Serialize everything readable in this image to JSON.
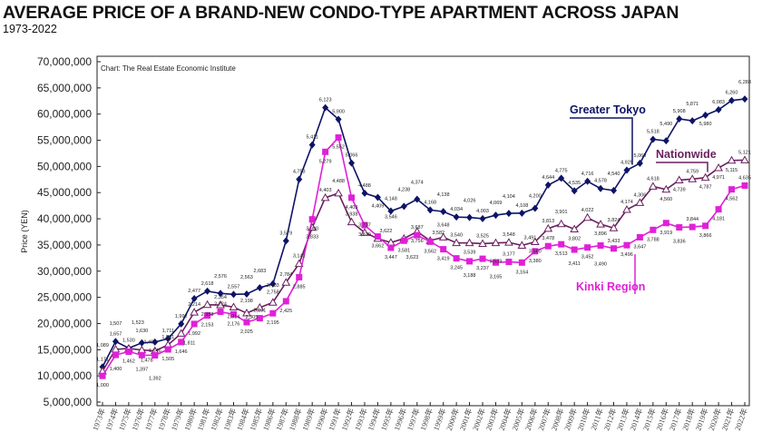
{
  "title": "AVERAGE PRICE OF A BRAND-NEW CONDO-TYPE APARTMENT ACROSS JAPAN",
  "subtitle": "1973-2022",
  "chart_data": {
    "type": "line",
    "source": "Chart: The Real Estate Economic Institute",
    "ylabel": "Price (YEN)",
    "xlabel": "",
    "ylim": [
      5000000,
      70000000
    ],
    "yticks": [
      5000000,
      10000000,
      15000000,
      20000000,
      25000000,
      30000000,
      35000000,
      40000000,
      45000000,
      50000000,
      55000000,
      60000000,
      65000000,
      70000000
    ],
    "x": [
      1973,
      1974,
      1975,
      1976,
      1977,
      1978,
      1979,
      1980,
      1981,
      1982,
      1983,
      1984,
      1985,
      1986,
      1987,
      1988,
      1989,
      1990,
      1991,
      1992,
      1993,
      1994,
      1995,
      1996,
      1997,
      1998,
      1999,
      2000,
      2001,
      2002,
      2003,
      2004,
      2005,
      2006,
      2007,
      2008,
      2009,
      2010,
      2011,
      2012,
      2013,
      2014,
      2015,
      2016,
      2017,
      2018,
      2019,
      2020,
      2021,
      2022
    ],
    "x_tick_suffix": "年",
    "value_label_unit": "10,000 yen",
    "grid": false,
    "legend": "callout labels",
    "series": [
      {
        "name": "Greater Tokyo",
        "color": "#0d1466",
        "marker": "diamond",
        "values": [
          1171,
          1657,
          1530,
          1630,
          1646,
          1711,
          1992,
          2477,
          2618,
          2576,
          2557,
          2563,
          2683,
          2758,
          3579,
          4753,
          5411,
          6123,
          5900,
          5066,
          4488,
          4409,
          4148,
          4238,
          4374,
          4168,
          4138,
          4034,
          4026,
          4003,
          4069,
          4104,
          4108,
          4200,
          4644,
          4775,
          4535,
          4716,
          4578,
          4540,
          4929,
          5060,
          5518,
          5490,
          5908,
          5871,
          5980,
          6083,
          6260,
          6288
        ]
      },
      {
        "name": "Nationwide",
        "color": "#6a1f5e",
        "marker": "triangle-open",
        "values": [
          1089,
          1507,
          1523,
          1493,
          1478,
          1591,
          1811,
          2214,
          2358,
          2354,
          2314,
          2198,
          2305,
          2403,
          2784,
          3141,
          3833,
          4403,
          4488,
          3938,
          3737,
          3622,
          3546,
          3623,
          3756,
          3582,
          3648,
          3540,
          3539,
          3525,
          3539,
          3548,
          3491,
          3560,
          3813,
          3901,
          3802,
          4022,
          3896,
          3824,
          4174,
          4306,
          4618,
          4560,
          4739,
          4759,
          4787,
          4971,
          5115,
          5121
        ]
      },
      {
        "name": "Kinki Region",
        "color": "#e020d8",
        "marker": "square",
        "values": [
          1000,
          1400,
          1462,
          1397,
          1392,
          1505,
          1646,
          1992,
          2153,
          2224,
          2176,
          2025,
          2101,
          2195,
          2425,
          2885,
          3990,
          5279,
          5552,
          4403,
          3879,
          3662,
          3447,
          3581,
          3687,
          3562,
          3419,
          3245,
          3188,
          3237,
          3165,
          3177,
          3164,
          3380,
          3478,
          3513,
          3411,
          3452,
          3490,
          3433,
          3496,
          3647,
          3788,
          3919,
          3836,
          3844,
          3866,
          4181,
          4562,
          4635
        ]
      }
    ]
  }
}
